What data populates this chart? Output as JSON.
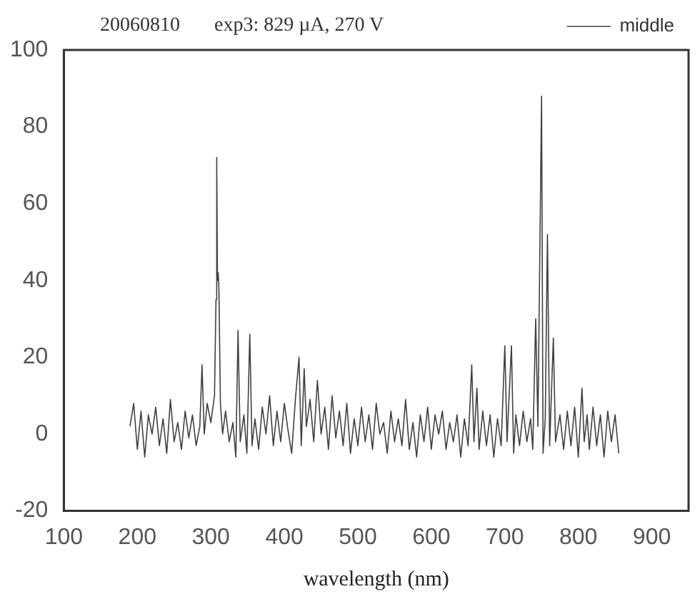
{
  "chart_data": {
    "type": "line",
    "xlabel": "wavelength (nm)",
    "annotations": [
      "20060810",
      "exp3: 829 µA, 270 V"
    ],
    "legend": "top right",
    "grid": false,
    "marker": "none",
    "line_style": "solid",
    "xlim": [
      100,
      950
    ],
    "xticks": [
      100,
      200,
      300,
      400,
      500,
      600,
      700,
      800,
      900
    ],
    "ylim": [
      -20,
      100
    ],
    "yticks": [
      -20,
      0,
      20,
      40,
      60,
      80,
      100
    ],
    "series": [
      {
        "name": "middle",
        "color": "#404040",
        "x": [
          190,
          195,
          200,
          205,
          210,
          215,
          220,
          225,
          230,
          235,
          240,
          245,
          250,
          255,
          260,
          265,
          270,
          275,
          280,
          285,
          288,
          291,
          295,
          300,
          305,
          307,
          308,
          309,
          310,
          311,
          313,
          316,
          320,
          325,
          330,
          334,
          337,
          340,
          345,
          349,
          353,
          356,
          360,
          365,
          370,
          375,
          380,
          385,
          390,
          395,
          400,
          405,
          410,
          415,
          420,
          423,
          427,
          430,
          435,
          440,
          445,
          450,
          455,
          460,
          465,
          470,
          475,
          480,
          485,
          490,
          495,
          500,
          505,
          510,
          515,
          520,
          525,
          530,
          535,
          540,
          545,
          550,
          555,
          560,
          565,
          570,
          575,
          580,
          585,
          590,
          595,
          600,
          605,
          610,
          615,
          620,
          625,
          630,
          635,
          640,
          645,
          650,
          655,
          658,
          662,
          665,
          670,
          675,
          680,
          685,
          690,
          695,
          700,
          703,
          709,
          712,
          715,
          720,
          725,
          730,
          735,
          738,
          742,
          745,
          750,
          752,
          755,
          758,
          761,
          766,
          769,
          775,
          780,
          785,
          790,
          795,
          800,
          805,
          808,
          812,
          815,
          820,
          825,
          830,
          835,
          840,
          845,
          850,
          855
        ],
        "values": [
          2,
          8,
          -4,
          6,
          -6,
          5,
          0,
          7,
          -3,
          4,
          -5,
          9,
          -2,
          3,
          -4,
          6,
          -1,
          5,
          -3,
          2,
          18,
          0,
          8,
          3,
          10,
          35,
          72,
          40,
          42,
          38,
          8,
          0,
          6,
          -2,
          3,
          -6,
          27,
          -2,
          5,
          -5,
          26,
          -3,
          4,
          -4,
          7,
          0,
          10,
          -3,
          6,
          -2,
          8,
          1,
          -5,
          9,
          20,
          -3,
          17,
          2,
          9,
          -2,
          14,
          0,
          7,
          -4,
          10,
          -1,
          6,
          -3,
          8,
          -5,
          4,
          -3,
          7,
          -2,
          5,
          -4,
          8,
          0,
          3,
          -5,
          6,
          -2,
          4,
          -3,
          9,
          -4,
          3,
          -6,
          5,
          -2,
          7,
          -4,
          5,
          0,
          6,
          -4,
          3,
          -2,
          5,
          -6,
          4,
          -3,
          18,
          -2,
          12,
          -4,
          6,
          -3,
          5,
          -6,
          4,
          -3,
          23,
          -2,
          23,
          -5,
          5,
          -3,
          6,
          -2,
          4,
          -4,
          30,
          2,
          88,
          -5,
          4,
          52,
          -3,
          25,
          -2,
          5,
          -4,
          6,
          -3,
          7,
          -6,
          12,
          -2,
          5,
          -4,
          7,
          -3,
          5,
          -6,
          6,
          -2,
          5,
          -5
        ]
      }
    ]
  }
}
